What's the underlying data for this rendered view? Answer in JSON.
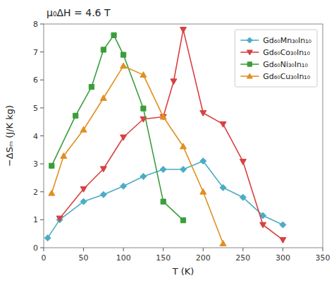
{
  "chart_data": {
    "type": "line",
    "annotation": "μ₀ΔH = 4.6 T",
    "x_label": "T (K)",
    "y_label": "−ΔSₘ (J/K kg)",
    "xlim": [
      0,
      350
    ],
    "ylim": [
      0,
      8
    ],
    "xticks": [
      0,
      50,
      100,
      150,
      200,
      250,
      300,
      350
    ],
    "yticks": [
      0,
      1,
      2,
      3,
      4,
      5,
      6,
      7,
      8
    ],
    "grid": false,
    "legend": "upper right",
    "series": [
      {
        "name": "Gd₆₀Mn₃₀In₁₀",
        "color": "#4bacc6",
        "marker": "diamond",
        "x": [
          5,
          20,
          50,
          75,
          100,
          125,
          150,
          175,
          200,
          225,
          250,
          275,
          300
        ],
        "values": [
          0.35,
          1.0,
          1.65,
          1.9,
          2.2,
          2.55,
          2.8,
          2.8,
          3.1,
          2.15,
          1.8,
          1.15,
          0.82
        ]
      },
      {
        "name": "Gd₆₀Co₃₀In₁₀",
        "color": "#d94040",
        "marker": "triangle-down",
        "x": [
          20,
          50,
          75,
          100,
          125,
          150,
          163,
          175,
          200,
          225,
          250,
          275,
          300
        ],
        "values": [
          1.05,
          2.1,
          2.82,
          3.95,
          4.6,
          4.68,
          5.95,
          7.8,
          4.82,
          4.42,
          3.08,
          0.82,
          0.28
        ]
      },
      {
        "name": "Gd₆₀Ni₃₀In₁₀",
        "color": "#3a9e3a",
        "marker": "square",
        "x": [
          10,
          40,
          60,
          75,
          88,
          100,
          125,
          150,
          175
        ],
        "values": [
          2.93,
          4.72,
          5.75,
          7.08,
          7.6,
          6.9,
          4.98,
          1.65,
          0.98
        ]
      },
      {
        "name": "Gd₆₀Cu₃₀In₁₀",
        "color": "#e09020",
        "marker": "triangle-up",
        "x": [
          10,
          25,
          50,
          75,
          100,
          125,
          150,
          175,
          200,
          225
        ],
        "values": [
          1.95,
          3.28,
          4.22,
          5.35,
          6.5,
          6.18,
          4.68,
          3.62,
          2.0,
          0.15
        ]
      }
    ]
  }
}
